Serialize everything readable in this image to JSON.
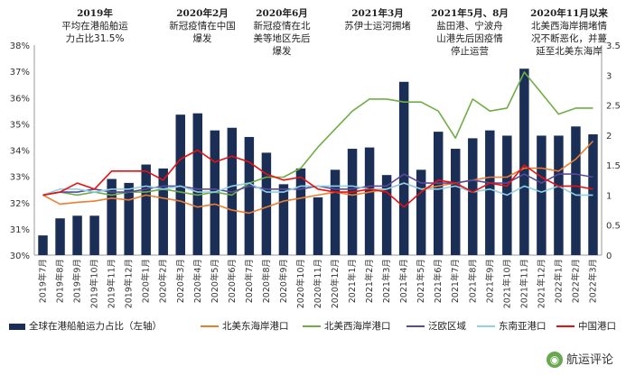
{
  "annotations": [
    {
      "title": "2019年",
      "text": [
        "平均在港船舶运",
        "力占比31.5%"
      ]
    },
    {
      "title": "2020年2月",
      "text": [
        "新冠疫情在中国",
        "爆发"
      ]
    },
    {
      "title": "2020年6月",
      "text": [
        "新冠疫情在北",
        "美等地区先后",
        "爆发"
      ]
    },
    {
      "title": "2021年3月",
      "text": [
        "苏伊士运河拥堵"
      ]
    },
    {
      "title": "2021年5月、8月",
      "text": [
        "盐田港、宁波舟",
        "山港先后因疫情",
        "停止运营"
      ]
    },
    {
      "title": "2020年11月以来",
      "text": [
        "北美西海岸拥堵情",
        "况不断恶化，并蔓",
        "延至北美东海岸"
      ]
    }
  ],
  "watermark": "航运评论",
  "chart_data": {
    "type": "bar",
    "title": "",
    "xlabel": "",
    "ylabel": "",
    "categories": [
      "2019年7月",
      "2019年8月",
      "2019年9月",
      "2019年10月",
      "2019年11月",
      "2019年12月",
      "2020年1月",
      "2020年2月",
      "2020年3月",
      "2020年4月",
      "2020年5月",
      "2020年6月",
      "2020年7月",
      "2020年8月",
      "2020年9月",
      "2020年10月",
      "2020年11月",
      "2020年12月",
      "2021年1月",
      "2021年2月",
      "2021年3月",
      "2021年4月",
      "2021年5月",
      "2021年6月",
      "2021年7月",
      "2021年8月",
      "2021年9月",
      "2021年10月",
      "2021年11月",
      "2021年12月",
      "2022年1月",
      "2022年2月",
      "2022年3月"
    ],
    "left_axis": {
      "ylim": [
        30,
        38
      ],
      "ticks": [
        "30%",
        "31%",
        "32%",
        "33%",
        "34%",
        "35%",
        "36%",
        "37%",
        "38%"
      ]
    },
    "right_axis": {
      "ylim": [
        0,
        3.5
      ],
      "ticks": [
        "0",
        "0.5",
        "1",
        "1.5",
        "2",
        "2.5",
        "3",
        "3.5"
      ]
    },
    "legend_position": "bottom",
    "bar_series": {
      "name": "全球在港船舶运力占比（左轴）",
      "color": "#1b2f56",
      "axis": "left",
      "values": [
        30.75,
        31.4,
        31.5,
        31.5,
        32.9,
        32.75,
        33.45,
        33.3,
        35.35,
        35.4,
        34.75,
        34.85,
        34.5,
        33.9,
        32.7,
        33.3,
        32.2,
        33.25,
        34.05,
        34.1,
        33.05,
        36.6,
        33.25,
        34.7,
        34.05,
        34.45,
        34.75,
        34.55,
        37.1,
        34.55,
        34.55,
        34.9,
        34.6
      ]
    },
    "line_series": [
      {
        "name": "北美东海岸港口",
        "color": "#ed7d31",
        "axis": "right",
        "values": [
          1.0,
          0.85,
          0.88,
          0.9,
          0.95,
          0.92,
          1.0,
          0.95,
          0.9,
          0.8,
          0.85,
          0.75,
          0.7,
          0.8,
          0.9,
          0.95,
          1.0,
          1.05,
          1.0,
          1.05,
          1.1,
          1.2,
          1.1,
          1.15,
          1.2,
          1.25,
          1.3,
          1.3,
          1.45,
          1.45,
          1.4,
          1.6,
          1.9
        ]
      },
      {
        "name": "北美西海岸港口",
        "color": "#70ad47",
        "axis": "right",
        "values": [
          1.0,
          1.05,
          1.0,
          1.05,
          1.0,
          1.05,
          1.05,
          1.1,
          1.05,
          1.0,
          1.05,
          1.0,
          1.2,
          1.3,
          1.3,
          1.45,
          1.8,
          2.1,
          2.4,
          2.6,
          2.6,
          2.55,
          2.55,
          2.4,
          1.95,
          2.6,
          2.4,
          2.45,
          3.05,
          2.7,
          2.35,
          2.45,
          2.45
        ]
      },
      {
        "name": "泛欧区域",
        "color": "#5b4a9a",
        "axis": "right",
        "values": [
          1.0,
          1.05,
          1.05,
          1.1,
          1.05,
          1.05,
          1.1,
          1.15,
          1.15,
          1.1,
          1.1,
          1.05,
          1.15,
          1.1,
          1.1,
          1.1,
          1.15,
          1.1,
          1.1,
          1.15,
          1.15,
          1.35,
          1.2,
          1.2,
          1.2,
          1.25,
          1.2,
          1.2,
          1.35,
          1.2,
          1.35,
          1.35,
          1.3
        ]
      },
      {
        "name": "东南亚港口",
        "color": "#8fd0e6",
        "axis": "right",
        "values": [
          1.0,
          1.1,
          1.1,
          1.05,
          1.1,
          1.1,
          1.15,
          1.1,
          1.15,
          1.05,
          1.05,
          1.15,
          1.2,
          1.05,
          1.05,
          1.15,
          1.15,
          1.15,
          1.15,
          1.1,
          1.1,
          1.2,
          1.1,
          1.1,
          1.15,
          1.05,
          1.1,
          1.0,
          1.15,
          1.05,
          1.15,
          1.0,
          1.0
        ]
      },
      {
        "name": "中国港口",
        "color": "#e8110f",
        "axis": "right",
        "values": [
          1.0,
          1.05,
          1.2,
          1.1,
          1.4,
          1.4,
          1.4,
          1.25,
          1.6,
          1.75,
          1.55,
          1.65,
          1.55,
          1.35,
          1.25,
          1.3,
          1.1,
          1.05,
          1.05,
          1.1,
          1.05,
          0.8,
          1.05,
          1.25,
          1.2,
          1.05,
          1.2,
          1.15,
          1.5,
          1.3,
          1.15,
          1.15,
          1.1
        ]
      }
    ]
  }
}
